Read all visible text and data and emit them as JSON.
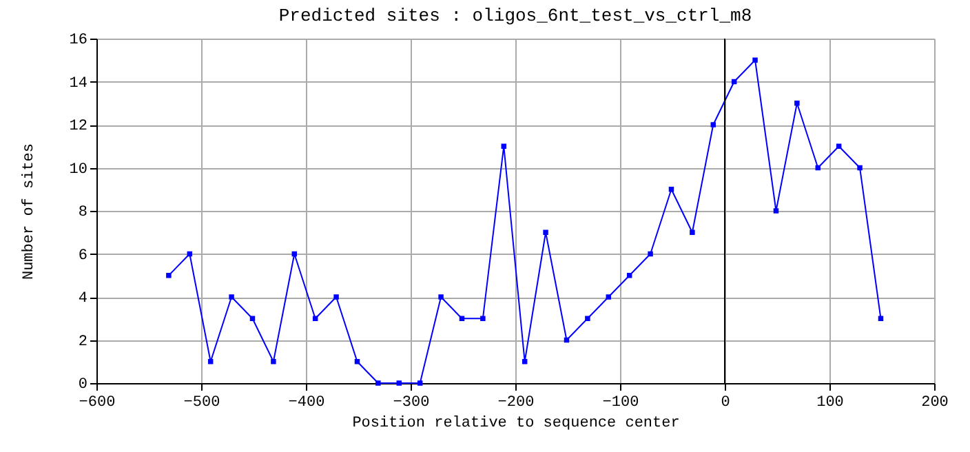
{
  "chart_data": {
    "type": "line",
    "title": "Predicted sites : oligos_6nt_test_vs_ctrl_m8",
    "xlabel": "Position relative to sequence center",
    "ylabel": "Number of sites",
    "x": [
      -531,
      -511,
      -491,
      -471,
      -451,
      -431,
      -411,
      -391,
      -371,
      -351,
      -331,
      -311,
      -291,
      -271,
      -251,
      -231,
      -211,
      -191,
      -171,
      -151,
      -131,
      -111,
      -91,
      -71,
      -51,
      -31,
      -11,
      9,
      29,
      49,
      69,
      89,
      109,
      129,
      149
    ],
    "series": [
      {
        "color": "#0000ff",
        "values": [
          5,
          6,
          1,
          4,
          3,
          1,
          6,
          3,
          4,
          1,
          0,
          0,
          0,
          4,
          3,
          3,
          11,
          1,
          7,
          2,
          3,
          4,
          5,
          6,
          9,
          7,
          12,
          14,
          15,
          8,
          13,
          10,
          11,
          10,
          3
        ]
      }
    ],
    "xlim": [
      -600,
      200
    ],
    "xticks": [
      -600,
      -500,
      -400,
      -300,
      -200,
      -100,
      0,
      100,
      200
    ],
    "ylim": [
      0,
      16
    ],
    "yticks": [
      0,
      2,
      4,
      6,
      8,
      10,
      12,
      14,
      16
    ],
    "ref_lines": [
      {
        "axis": "x",
        "value": 0,
        "color": "#000000"
      }
    ],
    "grid": true,
    "marker": "square",
    "line_style": "solid"
  }
}
